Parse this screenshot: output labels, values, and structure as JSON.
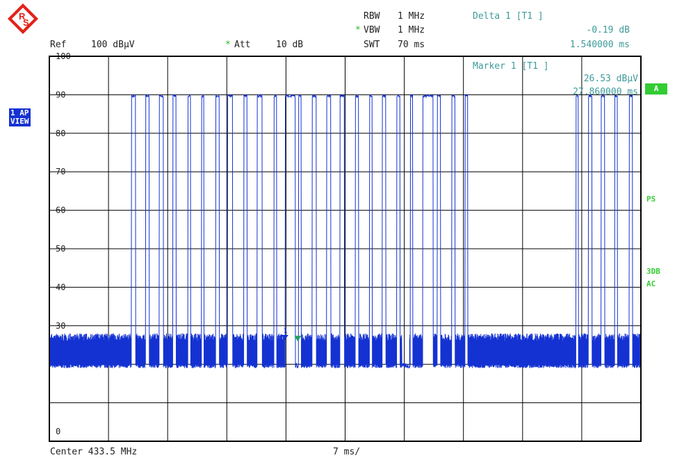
{
  "header": {
    "rbw_label": "RBW",
    "rbw_value": "1 MHz",
    "vbw_star": "*",
    "vbw_label": "VBW",
    "vbw_value": "1 MHz",
    "swt_label": "SWT",
    "swt_value": "70 ms",
    "ref_label": "Ref",
    "ref_value": "100 dBµV",
    "att_star": "*",
    "att_label": "Att",
    "att_value": "10 dB",
    "delta_label": "Delta 1 [T1 ]",
    "delta_level": "-0.19 dB",
    "delta_time": "1.540000 ms"
  },
  "marker": {
    "label": "Marker 1 [T1 ]",
    "level": "26.53 dBµV",
    "time": "27.860000 ms"
  },
  "side_panel": {
    "badge_line1": "1 AP",
    "badge_line2": "VIEW",
    "trace_box": "A",
    "ps_label": "PS",
    "db_label": "3DB",
    "ac_label": "AC"
  },
  "footer": {
    "center_label": "Center 433.5 MHz",
    "span_label": "7 ms/"
  },
  "colors": {
    "trace": "#1432d2",
    "grid": "#000000",
    "marker_text": "#3f9a9a",
    "indicator": "#33cc33"
  },
  "icons": {
    "logo": "rohde-schwarz-logo-icon",
    "marker": "marker-triangle-icon"
  },
  "chart_data": {
    "type": "line",
    "xlabel": "",
    "ylabel": "",
    "x_unit": "ms",
    "xlim": [
      0,
      70
    ],
    "ylim": [
      0,
      100
    ],
    "yticks": [
      0,
      30,
      40,
      50,
      60,
      70,
      80,
      90,
      100
    ],
    "grid": true,
    "noise_floor_range": [
      19,
      28
    ],
    "pulse_level": 90,
    "pulses_ms": [
      [
        9.7,
        10.2
      ],
      [
        11.4,
        11.8
      ],
      [
        13.0,
        13.5
      ],
      [
        14.6,
        15.0
      ],
      [
        16.4,
        16.7
      ],
      [
        18.0,
        18.3
      ],
      [
        19.7,
        20.1
      ],
      [
        21.1,
        21.7
      ],
      [
        23.0,
        23.4
      ],
      [
        24.6,
        25.2
      ],
      [
        26.6,
        26.9
      ],
      [
        27.9,
        29.1
      ],
      [
        29.5,
        29.8
      ],
      [
        31.1,
        31.6
      ],
      [
        32.8,
        33.3
      ],
      [
        34.4,
        34.9
      ],
      [
        36.2,
        36.6
      ],
      [
        37.9,
        38.2
      ],
      [
        39.4,
        39.8
      ],
      [
        41.1,
        41.5
      ],
      [
        42.7,
        43.0
      ],
      [
        44.2,
        45.4
      ],
      [
        45.9,
        46.3
      ],
      [
        47.6,
        48.0
      ],
      [
        49.2,
        49.5
      ],
      [
        62.3,
        62.6
      ],
      [
        63.8,
        64.2
      ],
      [
        65.3,
        65.7
      ],
      [
        66.9,
        67.2
      ],
      [
        68.6,
        69.0
      ]
    ],
    "quiet_gaps_ms": [
      [
        28.0,
        29.5
      ],
      [
        41.7,
        42.6
      ],
      [
        44.8,
        45.4
      ]
    ],
    "markers": [
      {
        "name": "1",
        "x": 27.86,
        "y": 26.53,
        "color": "#1432d2"
      },
      {
        "name": "delta",
        "x": 29.4,
        "y": 26.3,
        "color": "#1fa060"
      }
    ]
  }
}
